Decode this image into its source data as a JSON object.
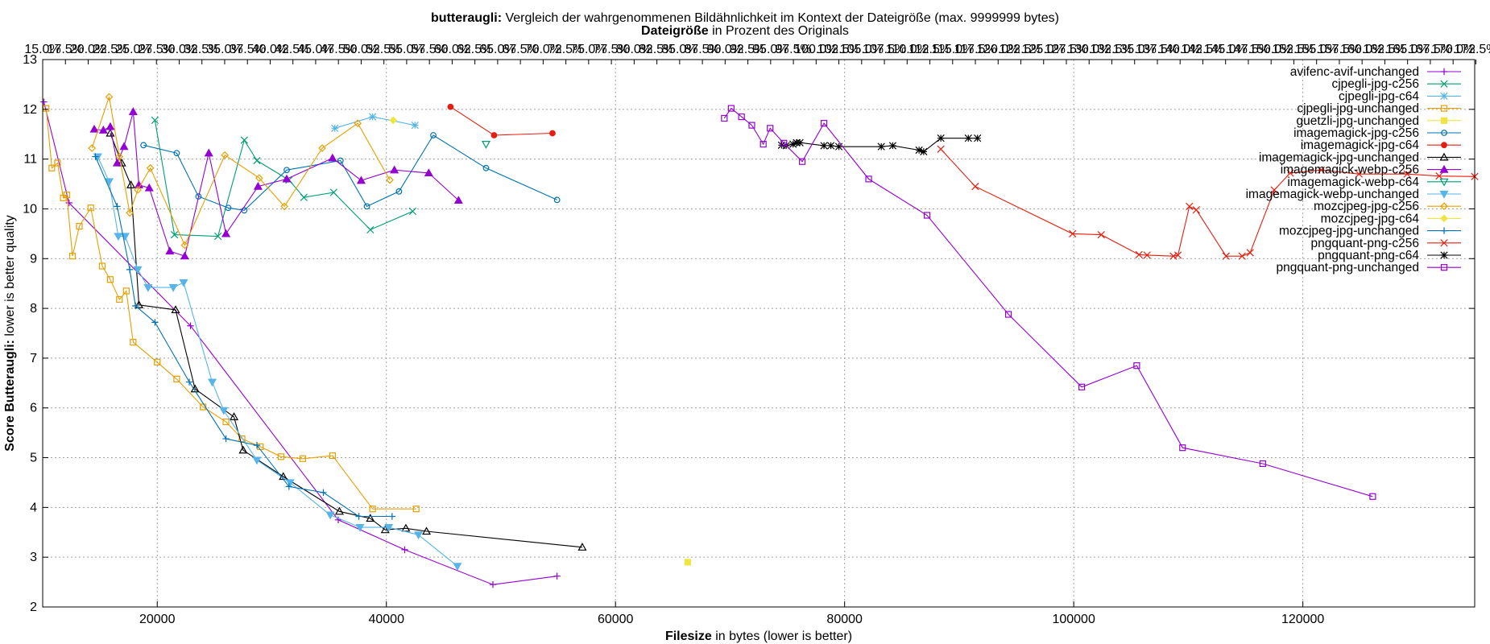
{
  "titles": {
    "title_bold": "butteraugli:",
    "title_rest": " Vergleich der wahrgenommenen Bildähnlichkeit im Kontext der Dateigröße (max. 9999999 bytes)",
    "top_axis_bold": "Dateigröße",
    "top_axis_rest": " in Prozent des Originals",
    "xlabel_bold": "Filesize",
    "xlabel_rest": " in bytes (lower is better)",
    "ylabel_bold": "Score Butteraugli:",
    "ylabel_rest": " lower is better quality"
  },
  "chart_data": {
    "type": "line",
    "xlim": [
      10000,
      135000
    ],
    "ylim": [
      2,
      13
    ],
    "x_ticks": [
      20000,
      40000,
      60000,
      80000,
      100000,
      120000
    ],
    "y_ticks": [
      2,
      3,
      4,
      5,
      6,
      7,
      8,
      9,
      10,
      11,
      12,
      13
    ],
    "x2_tick_labels": [
      "15.0%",
      "17.5%",
      "20.0%",
      "22.5%",
      "25.0%",
      "27.5%",
      "30.0%",
      "32.5%",
      "35.0%",
      "37.5%",
      "40.0%",
      "42.5%",
      "45.0%",
      "47.5%",
      "50.0%",
      "52.5%",
      "55.0%",
      "57.5%",
      "60.0%",
      "62.5%",
      "65.0%",
      "67.5%",
      "70.0%",
      "72.5%",
      "75.0%",
      "77.5%",
      "80.0%",
      "82.5%",
      "85.0%",
      "87.5%",
      "90.0%",
      "92.5%",
      "95.0%",
      "97.5%",
      "100.0%",
      "102.5%",
      "105.0%",
      "107.5%",
      "110.0%",
      "112.5%",
      "115.0%",
      "117.5%",
      "120.0%",
      "122.5%",
      "125.0%",
      "127.5%",
      "130.0%",
      "132.5%",
      "135.0%",
      "137.5%",
      "140.0%",
      "142.5%",
      "145.0%",
      "147.5%",
      "150.0%",
      "152.5%",
      "155.0%",
      "157.5%",
      "160.0%",
      "162.5%",
      "165.0%",
      "167.5%",
      "170.0%",
      "172.5%"
    ],
    "x2_first": 15.0,
    "x2_step": 2.5,
    "grid": true,
    "legend_position": "top-right",
    "series": [
      {
        "name": "avifenc-avif-unchanged",
        "color": "#9400d3",
        "marker": "plus",
        "x": [
          10100,
          12300,
          22900,
          35800,
          41600,
          49300,
          54900
        ],
        "y": [
          12.15,
          10.12,
          7.65,
          3.75,
          3.15,
          2.45,
          2.62
        ]
      },
      {
        "name": "cjpegli-jpg-c256",
        "color": "#009e73",
        "marker": "cross",
        "x": [
          19800,
          21500,
          25300,
          27600,
          28700,
          31500,
          32800,
          35400,
          38600,
          42300
        ],
        "y": [
          11.78,
          9.48,
          9.45,
          11.38,
          10.97,
          10.58,
          10.23,
          10.33,
          9.58,
          9.95
        ]
      },
      {
        "name": "cjpegli-jpg-c64",
        "color": "#56b4e9",
        "marker": "star",
        "x": [
          35500,
          38800,
          42500
        ],
        "y": [
          11.62,
          11.85,
          11.68
        ]
      },
      {
        "name": "cjpegli-jpg-unchanged",
        "color": "#e69f00",
        "marker": "square",
        "x": [
          10300,
          10800,
          11300,
          11800,
          12100,
          12600,
          13200,
          14200,
          15200,
          15900,
          16700,
          17300,
          17900,
          20000,
          21700,
          24000,
          26000,
          27400,
          29000,
          30800,
          32700,
          35300,
          38800,
          42600
        ],
        "y": [
          12.02,
          10.82,
          10.92,
          10.22,
          10.28,
          9.05,
          9.65,
          10.02,
          8.85,
          8.58,
          8.18,
          8.35,
          7.32,
          6.92,
          6.58,
          6.02,
          5.72,
          5.38,
          5.22,
          5.02,
          4.98,
          5.04,
          3.97,
          3.97
        ]
      },
      {
        "name": "guetzli-jpg-unchanged",
        "color": "#f0e442",
        "marker": "filled-square",
        "x": [
          66300
        ],
        "y": [
          2.9
        ]
      },
      {
        "name": "imagemagick-jpg-c256",
        "color": "#0072b2",
        "marker": "circle",
        "x": [
          18800,
          21700,
          23600,
          26200,
          27600,
          31300,
          36000,
          38300,
          41100,
          44100,
          48700,
          54900
        ],
        "y": [
          11.28,
          11.12,
          10.25,
          10.02,
          9.97,
          10.78,
          10.97,
          10.05,
          10.35,
          11.48,
          10.82,
          10.18
        ]
      },
      {
        "name": "imagemagick-jpg-c64",
        "color": "#e51e10",
        "marker": "filled-circle",
        "x": [
          45600,
          49400,
          54500
        ],
        "y": [
          12.05,
          11.48,
          11.52
        ]
      },
      {
        "name": "imagemagick-jpg-unchanged",
        "color": "#000000",
        "marker": "triangle",
        "x": [
          15900,
          16900,
          17700,
          18400,
          21600,
          23300,
          26700,
          27500,
          31000,
          35900,
          38600,
          39900,
          41700,
          43500,
          57100
        ],
        "y": [
          11.52,
          10.92,
          10.48,
          8.07,
          7.97,
          6.38,
          5.82,
          5.15,
          4.62,
          3.92,
          3.78,
          3.55,
          3.58,
          3.52,
          3.2
        ]
      },
      {
        "name": "imagemagick-webp-c256",
        "color": "#9400d3",
        "marker": "filled-triangle",
        "x": [
          14500,
          15300,
          15900,
          16500,
          17100,
          17900,
          18400,
          19300,
          21100,
          22400,
          24500,
          26000,
          28800,
          31300,
          35300,
          37800,
          40700,
          43700,
          46300
        ],
        "y": [
          11.6,
          11.58,
          11.65,
          10.92,
          11.25,
          11.95,
          10.48,
          10.42,
          9.15,
          9.05,
          11.12,
          9.5,
          10.45,
          10.6,
          11.02,
          10.57,
          10.78,
          10.72,
          10.17
        ]
      },
      {
        "name": "imagemagick-webp-c64",
        "color": "#009e73",
        "marker": "down-triangle",
        "x": [
          48700
        ],
        "y": [
          11.3
        ]
      },
      {
        "name": "imagemagick-webp-unchanged",
        "color": "#56b4e9",
        "marker": "filled-down-triangle",
        "x": [
          14800,
          15800,
          16600,
          17200,
          18300,
          19200,
          21400,
          22300,
          24800,
          25800,
          28700,
          31600,
          35100,
          37700,
          40200,
          42800,
          46200
        ],
        "y": [
          11.05,
          10.55,
          9.45,
          9.45,
          8.78,
          8.42,
          8.42,
          8.52,
          6.52,
          5.95,
          4.95,
          4.5,
          3.85,
          3.6,
          3.6,
          3.45,
          2.82
        ]
      },
      {
        "name": "mozcjpeg-jpg-c256",
        "color": "#e69f00",
        "marker": "diamond",
        "x": [
          14300,
          15800,
          16700,
          17600,
          18300,
          19400,
          22400,
          25900,
          28900,
          31100,
          34400,
          37500,
          40300
        ],
        "y": [
          11.22,
          12.25,
          11.05,
          9.92,
          10.38,
          10.82,
          9.27,
          11.08,
          10.62,
          10.05,
          11.22,
          11.72,
          10.58
        ]
      },
      {
        "name": "mozcjpeg-jpg-c64",
        "color": "#f0e442",
        "marker": "filled-diamond",
        "x": [
          40600
        ],
        "y": [
          11.78
        ]
      },
      {
        "name": "mozcjpeg-jpg-unchanged",
        "color": "#0072b2",
        "marker": "plus",
        "x": [
          14600,
          16500,
          17600,
          18100,
          19800,
          22800,
          26000,
          28700,
          31500,
          34500,
          37600,
          40500
        ],
        "y": [
          11.05,
          10.05,
          8.78,
          8.05,
          7.72,
          6.52,
          5.38,
          5.25,
          4.42,
          4.3,
          3.82,
          3.82
        ]
      },
      {
        "name": "pngquant-png-c256",
        "color": "#e51e10",
        "marker": "cross",
        "x": [
          88400,
          91400,
          99900,
          102400,
          105700,
          106400,
          108700,
          109100,
          110100,
          110700,
          113300,
          114700,
          115400,
          117500,
          118900,
          121600,
          124900,
          129100,
          131900,
          135000
        ],
        "y": [
          11.2,
          10.45,
          9.5,
          9.48,
          9.08,
          9.07,
          9.05,
          9.07,
          10.05,
          9.98,
          9.05,
          9.05,
          9.12,
          10.38,
          10.72,
          10.78,
          10.7,
          10.7,
          10.66,
          10.65
        ]
      },
      {
        "name": "pngquant-png-c64",
        "color": "#000000",
        "marker": "star",
        "x": [
          74500,
          74900,
          75500,
          75800,
          76100,
          78200,
          78800,
          79500,
          83200,
          84200,
          86500,
          86900,
          88400,
          90800,
          91600
        ],
        "y": [
          11.28,
          11.27,
          11.3,
          11.33,
          11.33,
          11.27,
          11.27,
          11.25,
          11.25,
          11.27,
          11.18,
          11.15,
          11.42,
          11.42,
          11.42
        ]
      },
      {
        "name": "pngquant-png-unchanged",
        "color": "#9400d3",
        "marker": "square",
        "x": [
          69500,
          70100,
          71000,
          71900,
          72900,
          73500,
          74700,
          76300,
          78200,
          82100,
          87200,
          94300,
          100700,
          105500,
          109500,
          116500,
          126100
        ],
        "y": [
          11.82,
          12.02,
          11.85,
          11.68,
          11.3,
          11.62,
          11.32,
          10.95,
          11.72,
          10.6,
          9.87,
          7.88,
          6.42,
          6.85,
          5.2,
          4.88,
          4.22
        ]
      }
    ]
  }
}
